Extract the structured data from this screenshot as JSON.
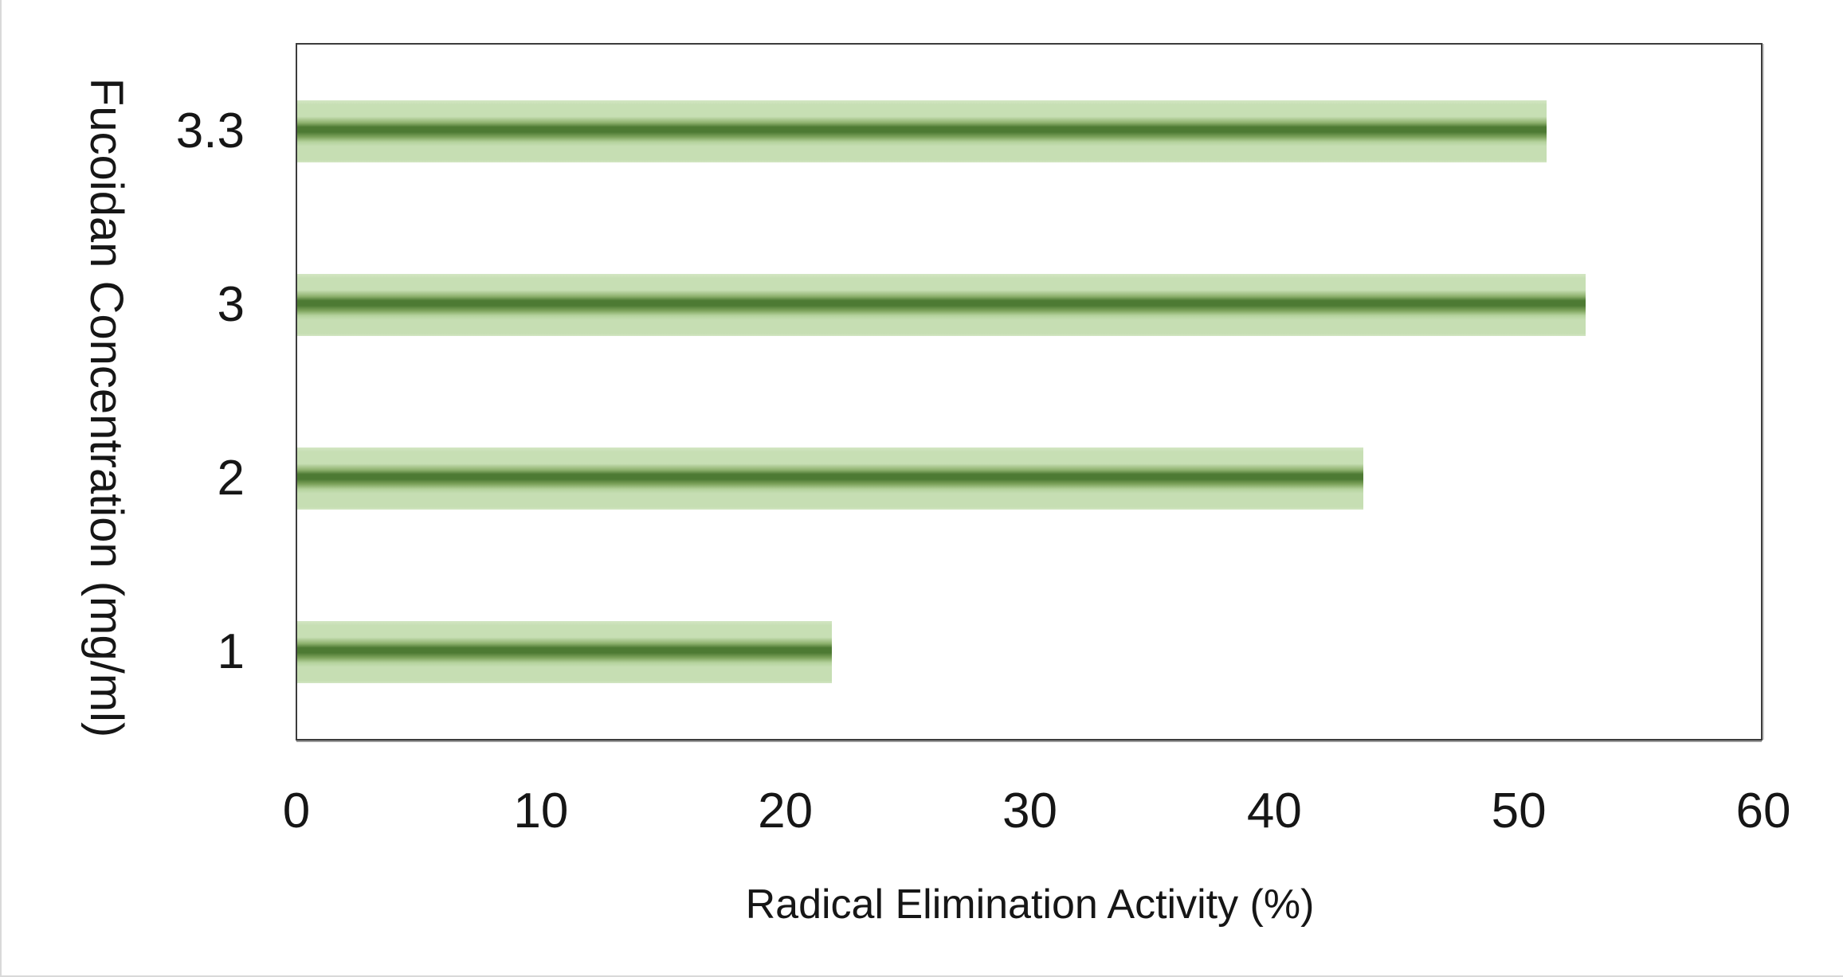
{
  "figure": {
    "background_color": "#ffffff",
    "edge_line_color": "#d9d9d9",
    "text_color": "#161616",
    "axis_border_color": "#3b3b3b"
  },
  "chart_data": {
    "type": "bar",
    "orientation": "horizontal",
    "title": "",
    "xlabel": "Radical Elimination Activity (%)",
    "ylabel": "Fucoidan Concentration (mg/ml)",
    "categories": [
      "3.3",
      "3",
      "2",
      "1"
    ],
    "values": [
      51.2,
      52.8,
      43.7,
      21.9
    ],
    "xlim": [
      0,
      60
    ],
    "xticks": [
      "0",
      "10",
      "20",
      "30",
      "40",
      "50",
      "60"
    ],
    "grid": false,
    "legend": null,
    "bar_color_light": "#c7dfb4",
    "bar_color_dark": "#4d7a33",
    "bar_gradient_stops": [
      [
        "#d3e6c3",
        "0%"
      ],
      [
        "#c7dfb4",
        "7%"
      ],
      [
        "#c7dfb4",
        "26%"
      ],
      [
        "#8fb26f",
        "36%"
      ],
      [
        "#4d7a33",
        "43%"
      ],
      [
        "#4d7a33",
        "51%"
      ],
      [
        "#7da35c",
        "59%"
      ],
      [
        "#b4d29c",
        "67%"
      ],
      [
        "#c6deb3",
        "74%"
      ],
      [
        "#c6deb3",
        "96%"
      ],
      [
        "#d3e6c3",
        "100%"
      ]
    ]
  }
}
